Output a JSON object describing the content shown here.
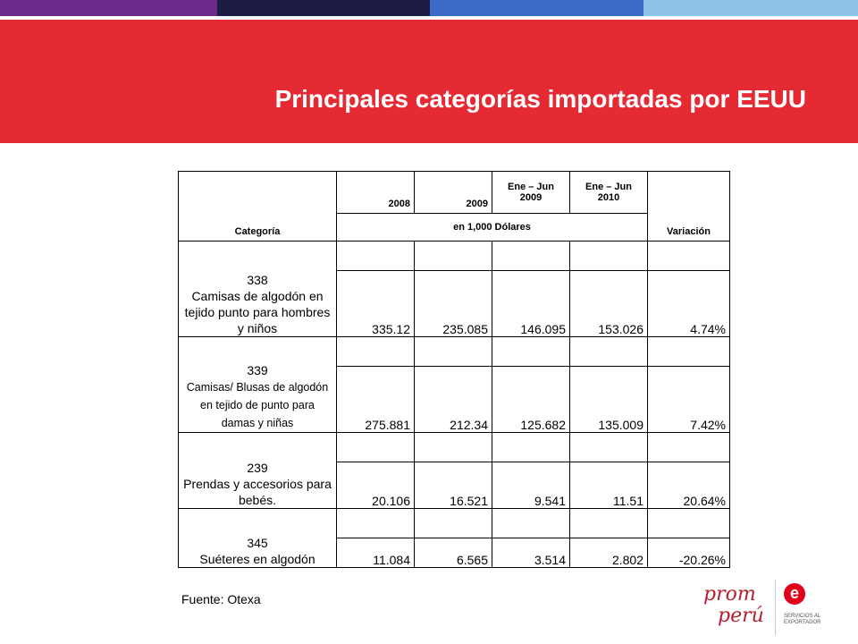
{
  "slide": {
    "title": "Principales categorías importadas por EEUU",
    "source": "Fuente: Otexa"
  },
  "table": {
    "header": {
      "category": "Categoría",
      "years": [
        "2008",
        "2009",
        "Ene – Jun 2009",
        "Ene – Jun 2010"
      ],
      "units": "en  1,000 Dólares",
      "variation": "Variación"
    },
    "rows": [
      {
        "code": "338",
        "name": "Camisas de algodón en tejido punto para hombres y niños",
        "values": [
          "335.12",
          "235.085",
          "146.095",
          "153.026"
        ],
        "variation": "4.74%"
      },
      {
        "code": "339",
        "name": "Camisas/ Blusas de algodón en tejido de punto para damas y niñas",
        "values": [
          "275.881",
          "212.34",
          "125.682",
          "135.009"
        ],
        "variation": "7.42%"
      },
      {
        "code": "239",
        "name": "Prendas y accesorios para bebés.",
        "values": [
          "20.106",
          "16.521",
          "9.541",
          "11.51"
        ],
        "variation": "20.64%"
      },
      {
        "code": "345",
        "name": "Suéteres en algodón",
        "values": [
          "11.084",
          "6.565",
          "3.514",
          "2.802"
        ],
        "variation": "-20.26%"
      }
    ]
  },
  "logo": {
    "brand_line1": "prom",
    "brand_line2": "perú",
    "mark": "e",
    "tagline": "Servicios al Exportador"
  },
  "colors": {
    "banner": "#e52a33",
    "bar_purple": "#6b2a8c",
    "bar_navy": "#1c1c44",
    "bar_blue": "#3a6bc4",
    "bar_lightblue": "#8ec3ea"
  }
}
